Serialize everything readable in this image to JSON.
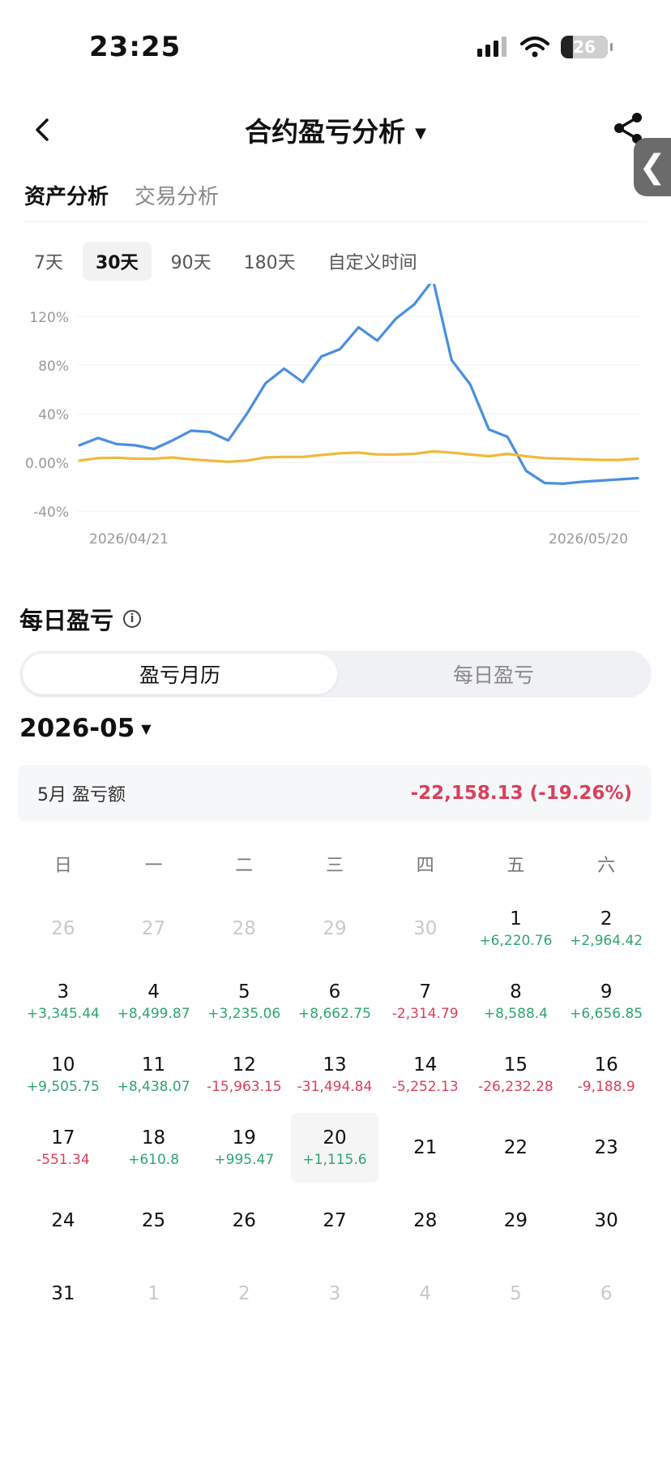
{
  "status_bar": {
    "time": "23:25",
    "battery": "26",
    "battery_level": 0.26
  },
  "nav": {
    "title": "合约盈亏分析"
  },
  "main_tabs": [
    {
      "label": "资产分析",
      "active": true
    },
    {
      "label": "交易分析",
      "active": false
    }
  ],
  "range_tabs": [
    {
      "label": "7天",
      "selected": false
    },
    {
      "label": "30天",
      "selected": true
    },
    {
      "label": "90天",
      "selected": false
    },
    {
      "label": "180天",
      "selected": false
    },
    {
      "label": "自定义时间",
      "selected": false
    }
  ],
  "chart_data": {
    "type": "line",
    "y_ticks": [
      "120%",
      "80%",
      "40%",
      "0.00%",
      "-40%"
    ],
    "x_labels": [
      "2026/04/21",
      "2026/05/20"
    ],
    "ylim": [
      -40,
      140
    ],
    "grid": true,
    "series": [
      {
        "color": "#4a8ee0",
        "values": [
          14,
          20,
          15,
          14,
          11,
          18,
          26,
          25,
          18,
          40,
          65,
          77,
          66,
          87,
          93,
          111,
          100,
          118,
          130,
          150,
          84,
          64,
          27,
          21,
          -7,
          -17,
          -17.5,
          -16,
          -15,
          -14,
          -13
        ]
      },
      {
        "color": "#f0b93a",
        "values": [
          1.5,
          3.5,
          3.8,
          3,
          3,
          4,
          2.5,
          1.5,
          0.5,
          1.5,
          4,
          4.5,
          4.5,
          6,
          7.5,
          8,
          6.5,
          6.5,
          7,
          9,
          8,
          6.5,
          5,
          7,
          5,
          3.5,
          3,
          2.5,
          2,
          2,
          3
        ]
      }
    ]
  },
  "daily": {
    "title": "每日盈亏",
    "segments": [
      {
        "label": "盈亏月历",
        "active": true
      },
      {
        "label": "每日盈亏",
        "active": false
      }
    ],
    "month": "2026-05",
    "summary_label": "5月 盈亏额",
    "summary_value": "-22,158.13 (-19.26%)"
  },
  "calendar": {
    "weekdays": [
      "日",
      "一",
      "二",
      "三",
      "四",
      "五",
      "六"
    ],
    "days": [
      {
        "day": "26",
        "other": true
      },
      {
        "day": "27",
        "other": true
      },
      {
        "day": "28",
        "other": true
      },
      {
        "day": "29",
        "other": true
      },
      {
        "day": "30",
        "other": true
      },
      {
        "day": "1",
        "pnl": "+6,220.76",
        "sign": "pos"
      },
      {
        "day": "2",
        "pnl": "+2,964.42",
        "sign": "pos"
      },
      {
        "day": "3",
        "pnl": "+3,345.44",
        "sign": "pos"
      },
      {
        "day": "4",
        "pnl": "+8,499.87",
        "sign": "pos"
      },
      {
        "day": "5",
        "pnl": "+3,235.06",
        "sign": "pos"
      },
      {
        "day": "6",
        "pnl": "+8,662.75",
        "sign": "pos"
      },
      {
        "day": "7",
        "pnl": "-2,314.79",
        "sign": "neg"
      },
      {
        "day": "8",
        "pnl": "+8,588.4",
        "sign": "pos"
      },
      {
        "day": "9",
        "pnl": "+6,656.85",
        "sign": "pos"
      },
      {
        "day": "10",
        "pnl": "+9,505.75",
        "sign": "pos"
      },
      {
        "day": "11",
        "pnl": "+8,438.07",
        "sign": "pos"
      },
      {
        "day": "12",
        "pnl": "-15,963.15",
        "sign": "neg"
      },
      {
        "day": "13",
        "pnl": "-31,494.84",
        "sign": "neg"
      },
      {
        "day": "14",
        "pnl": "-5,252.13",
        "sign": "neg"
      },
      {
        "day": "15",
        "pnl": "-26,232.28",
        "sign": "neg"
      },
      {
        "day": "16",
        "pnl": "-9,188.9",
        "sign": "neg"
      },
      {
        "day": "17",
        "pnl": "-551.34",
        "sign": "neg"
      },
      {
        "day": "18",
        "pnl": "+610.8",
        "sign": "pos"
      },
      {
        "day": "19",
        "pnl": "+995.47",
        "sign": "pos"
      },
      {
        "day": "20",
        "pnl": "+1,115.6",
        "sign": "pos",
        "today": true
      },
      {
        "day": "21"
      },
      {
        "day": "22"
      },
      {
        "day": "23"
      },
      {
        "day": "24"
      },
      {
        "day": "25"
      },
      {
        "day": "26"
      },
      {
        "day": "27"
      },
      {
        "day": "28"
      },
      {
        "day": "29"
      },
      {
        "day": "30"
      },
      {
        "day": "31"
      },
      {
        "day": "1",
        "other": true
      },
      {
        "day": "2",
        "other": true
      },
      {
        "day": "3",
        "other": true
      },
      {
        "day": "4",
        "other": true
      },
      {
        "day": "5",
        "other": true
      },
      {
        "day": "6",
        "other": true
      }
    ]
  },
  "colors": {
    "accent_negative": "#d9405a",
    "accent_positive": "#2fa56c",
    "line_primary": "#4a8ee0",
    "line_secondary": "#f0b93a"
  }
}
